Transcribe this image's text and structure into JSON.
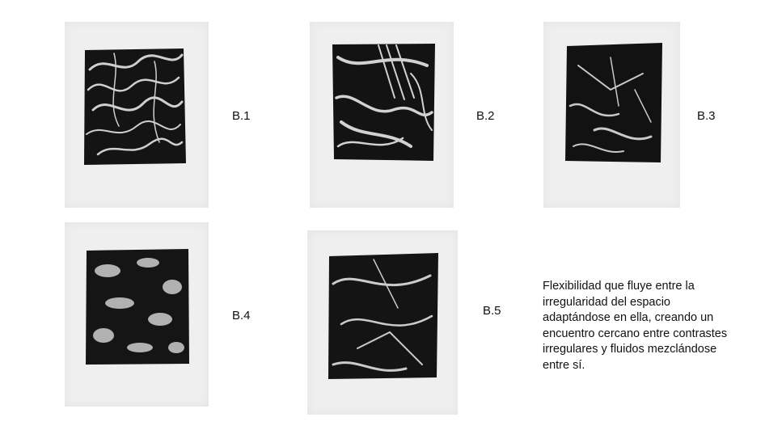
{
  "plates": [
    {
      "label": "B.1"
    },
    {
      "label": "B.2"
    },
    {
      "label": "B.3"
    },
    {
      "label": "B.4"
    },
    {
      "label": "B.5"
    }
  ],
  "caption": "Flexibilidad que fluye entre la irregularidad del espacio adaptándose en ella, creando un encuentro cercano entre contrastes irregulares y fluidos mezclándose entre sí.",
  "colors": {
    "paper": "#efefef",
    "ink": "#111111"
  }
}
